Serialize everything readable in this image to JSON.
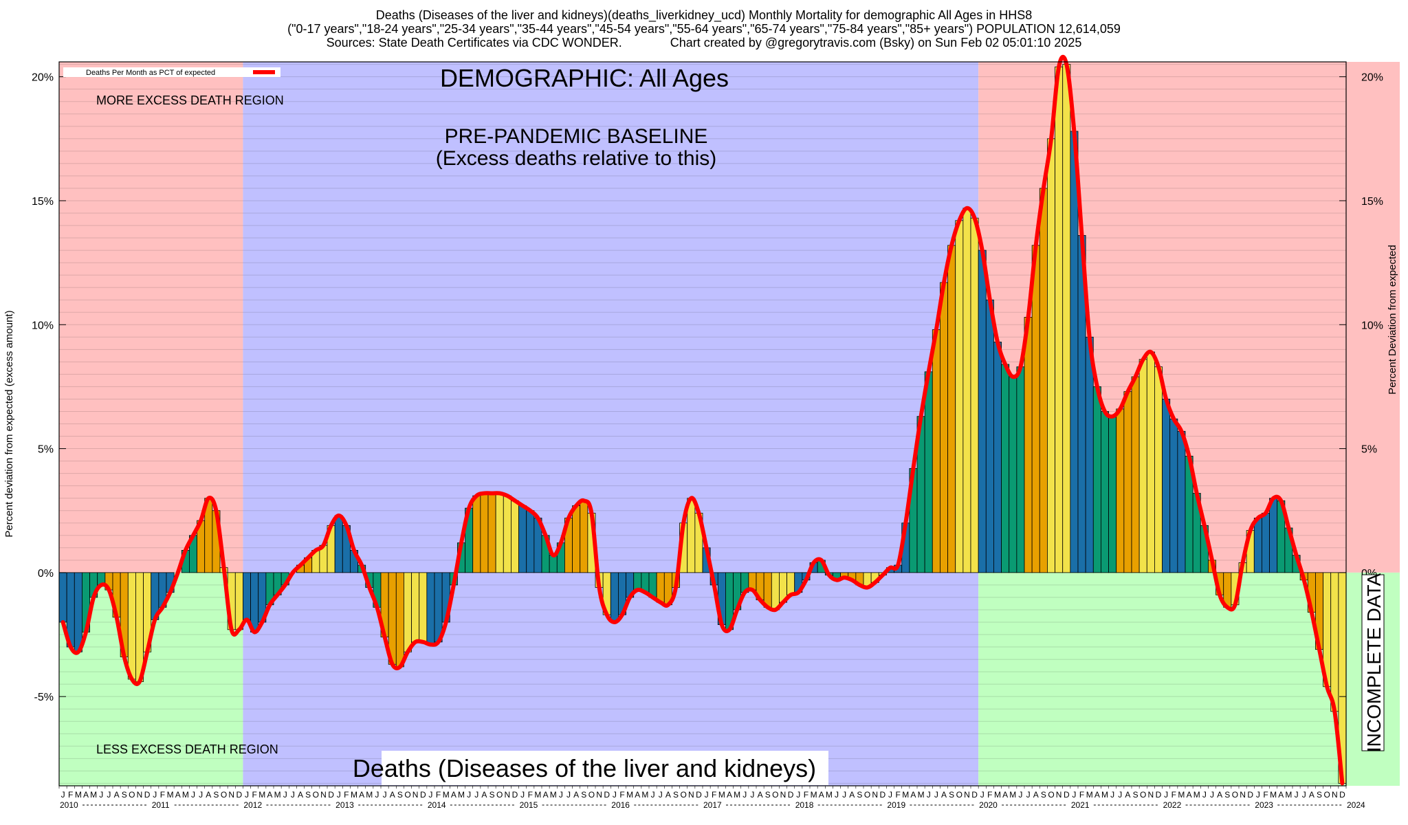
{
  "header": {
    "line1": "Deaths (Diseases of the liver and kidneys)(deaths_liverkidney_ucd) Monthly Mortality for demographic All Ages in HHS8",
    "line2": "(\"0-17 years\",\"18-24 years\",\"25-34 years\",\"35-44 years\",\"45-54 years\",\"55-64 years\",\"65-74 years\",\"75-84 years\",\"85+ years\") POPULATION 12,614,059",
    "line3": "Sources: State Death Certificates via CDC WONDER.              Chart created by @gregorytravis.com (Bsky) on Sun Feb 02 05:01:10 2025"
  },
  "chart_data": {
    "type": "bar",
    "title": "Deaths (Diseases of the liver and kidneys)",
    "ylabel_left": "Percent deviation from expected (excess amount)",
    "ylabel_right": "Percent Deviation from expected",
    "ylim": [
      -8.6,
      20.6
    ],
    "yticks": [
      -5,
      0,
      5,
      10,
      15,
      20
    ],
    "ytick_labels": [
      "-5%",
      "0%",
      "5%",
      "10%",
      "15%",
      "20%"
    ],
    "legend": {
      "label": "Deaths Per Month as PCT of expected",
      "position": "top-left",
      "line_color": "#ff0000"
    },
    "annotations": {
      "demographic": "DEMOGRAPHIC: All Ages",
      "baseline_line1": "PRE-PANDEMIC BASELINE",
      "baseline_line2": "(Excess deaths relative to this)",
      "more_region": "MORE EXCESS DEATH REGION",
      "less_region": "LESS EXCESS DEATH REGION",
      "incomplete": "INCOMPLETE DATA"
    },
    "month_letters": [
      "J",
      "F",
      "M",
      "A",
      "M",
      "J",
      "J",
      "A",
      "S",
      "O",
      "N",
      "D"
    ],
    "years": [
      "2010",
      "2011",
      "2012",
      "2013",
      "2014",
      "2015",
      "2016",
      "2017",
      "2018",
      "2019",
      "2020",
      "2021",
      "2022",
      "2023",
      "2024"
    ],
    "baseline_period": [
      "2012-01",
      "2019-12"
    ],
    "incomplete_period": [
      "2024-08",
      "2024-12"
    ],
    "start_month": "2010-01",
    "bar_colors": [
      "#1a6fa8",
      "#0a9a72",
      "#e8a000",
      "#f2e24a"
    ],
    "line_color": "#ff0000",
    "values": [
      -2.0,
      -3.0,
      -3.2,
      -2.4,
      -1.0,
      -0.5,
      -0.7,
      -1.8,
      -3.4,
      -4.3,
      -4.4,
      -3.2,
      -1.9,
      -1.4,
      -0.8,
      0.0,
      0.9,
      1.5,
      2.1,
      3.0,
      2.5,
      0.2,
      -2.3,
      -2.3,
      -1.9,
      -2.4,
      -2.0,
      -1.3,
      -0.9,
      -0.5,
      0.0,
      0.3,
      0.6,
      0.9,
      1.1,
      1.9,
      2.3,
      1.9,
      0.9,
      0.3,
      -0.6,
      -1.4,
      -2.6,
      -3.7,
      -3.8,
      -3.2,
      -2.8,
      -2.8,
      -2.9,
      -2.8,
      -2.0,
      -0.5,
      1.2,
      2.6,
      3.1,
      3.2,
      3.2,
      3.2,
      3.1,
      2.9,
      2.7,
      2.5,
      2.2,
      1.5,
      0.7,
      1.2,
      2.2,
      2.7,
      2.9,
      2.4,
      -0.6,
      -1.7,
      -2.0,
      -1.7,
      -1.0,
      -0.7,
      -0.8,
      -1.0,
      -1.2,
      -1.3,
      -0.6,
      2.0,
      3.0,
      2.4,
      1.0,
      -0.5,
      -2.1,
      -2.3,
      -1.5,
      -0.8,
      -0.7,
      -1.1,
      -1.4,
      -1.5,
      -1.2,
      -0.9,
      -0.8,
      -0.3,
      0.4,
      0.5,
      -0.1,
      -0.3,
      -0.2,
      -0.3,
      -0.5,
      -0.6,
      -0.4,
      -0.1,
      0.2,
      0.3,
      2.0,
      4.2,
      6.3,
      8.1,
      9.8,
      11.7,
      13.2,
      14.2,
      14.7,
      14.3,
      13.0,
      11.0,
      9.3,
      8.4,
      7.9,
      8.3,
      10.3,
      13.2,
      15.5,
      17.5,
      20.4,
      20.5,
      17.8,
      13.6,
      9.5,
      7.5,
      6.5,
      6.3,
      6.6,
      7.3,
      7.9,
      8.6,
      8.9,
      8.3,
      7.0,
      6.2,
      5.7,
      4.7,
      3.2,
      1.9,
      0.5,
      -0.9,
      -1.4,
      -1.3,
      0.4,
      1.7,
      2.2,
      2.4,
      3.0,
      2.9,
      1.8,
      0.7,
      -0.3,
      -1.6,
      -3.1,
      -4.6,
      -5.6,
      -8.5
    ]
  }
}
